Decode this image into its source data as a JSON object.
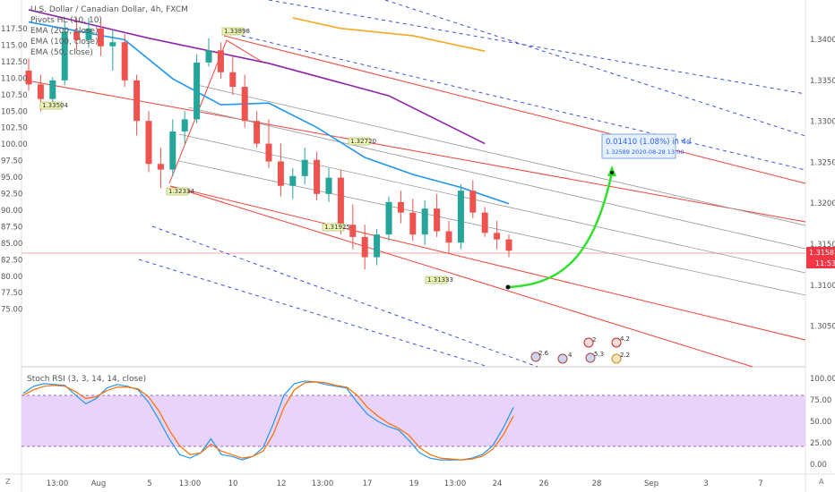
{
  "header": {
    "title": "U.S. Dollar / Canadian Dollar, 4h, FXCM",
    "indicators": [
      "Pivots HL (10, 10)",
      "EMA (200, close)",
      "EMA (100, close)",
      "EMA (50, close)"
    ]
  },
  "stoch_title": "Stoch RSI (3, 3, 14, 14, close)",
  "projection": {
    "line1": "0.01410 (1.08%) in 4d",
    "line2": "1.32589     2020-08-28  13:00"
  },
  "price_tag": {
    "price": "1.31581",
    "time": "11:53",
    "color": "#f23645"
  },
  "pivot_labels": [
    "1.33504",
    "1.33898",
    "1.32334",
    "1.32720",
    "1.31925",
    "1.31333"
  ],
  "event_badges": [
    "2.6",
    "4",
    "2",
    "5.3",
    "4.2",
    "2.2"
  ],
  "colors": {
    "up": "#26a69a",
    "down": "#ef5350",
    "ema50": "#2196f3",
    "ema100": "#8e24aa",
    "ema200": "#f6a821",
    "channel": "#f44336",
    "arrow": "#2fe02f"
  },
  "chart_data": [
    {
      "type": "candlestick",
      "title": "U.S. Dollar / Canadian Dollar, 4h, FXCM",
      "left_axis_ticks": [
        "117.50",
        "115.00",
        "112.50",
        "110.00",
        "107.50",
        "105.00",
        "102.50",
        "100.00",
        "97.50",
        "95.00",
        "92.50",
        "90.00",
        "87.50",
        "85.00",
        "82.50",
        "80.00",
        "77.50",
        "75.00"
      ],
      "right_axis_ticks": [
        "1.34000",
        "1.33500",
        "1.33000",
        "1.32500",
        "1.32000",
        "1.31500",
        "1.31000",
        "1.30500"
      ],
      "x_tick_labels": [
        "13:00",
        "Aug",
        "5",
        "13:00",
        "10",
        "12",
        "13:00",
        "17",
        "19",
        "13:00",
        "24",
        "26",
        "28",
        "Sep",
        "3",
        "7"
      ],
      "ylim": [
        1.3015,
        1.3445
      ],
      "last_price": 1.31581,
      "series": [
        {
          "name": "EMA (200, close)",
          "values": [
            [
              22,
              1.3445
            ],
            [
              26,
              1.3432
            ],
            [
              32,
              1.3423
            ],
            [
              38,
              1.3404
            ]
          ]
        },
        {
          "name": "EMA (100, close)",
          "values": [
            [
              0,
              1.3455
            ],
            [
              10,
              1.342
            ],
            [
              20,
              1.3389
            ],
            [
              30,
              1.3349
            ],
            [
              38,
              1.329
            ]
          ]
        },
        {
          "name": "EMA (50, close)",
          "values": [
            [
              0,
              1.344
            ],
            [
              8,
              1.3418
            ],
            [
              12,
              1.337
            ],
            [
              16,
              1.3338
            ],
            [
              20,
              1.334
            ],
            [
              24,
              1.331
            ],
            [
              28,
              1.3273
            ],
            [
              32,
              1.3252
            ],
            [
              36,
              1.3236
            ],
            [
              40,
              1.3216
            ]
          ]
        },
        {
          "name": "USD/CAD",
          "values": [
            [
              0,
              1.338,
              1.3395,
              1.3355,
              1.3363
            ],
            [
              1,
              1.3363,
              1.3375,
              1.333,
              1.3345
            ],
            [
              2,
              1.3345,
              1.3372,
              1.3338,
              1.3368
            ],
            [
              3,
              1.3368,
              1.344,
              1.3362,
              1.3428
            ],
            [
              4,
              1.3428,
              1.3445,
              1.3405,
              1.3418
            ],
            [
              5,
              1.3418,
              1.3445,
              1.3408,
              1.3432
            ],
            [
              6,
              1.3432,
              1.344,
              1.3398,
              1.341
            ],
            [
              7,
              1.341,
              1.343,
              1.338,
              1.3415
            ],
            [
              8,
              1.3415,
              1.3425,
              1.336,
              1.3368
            ],
            [
              9,
              1.3368,
              1.3375,
              1.33,
              1.3318
            ],
            [
              10,
              1.3318,
              1.333,
              1.3255,
              1.3265
            ],
            [
              11,
              1.3265,
              1.3285,
              1.3235,
              1.3258
            ],
            [
              12,
              1.3258,
              1.332,
              1.325,
              1.3305
            ],
            [
              13,
              1.3305,
              1.333,
              1.329,
              1.332
            ],
            [
              14,
              1.332,
              1.34,
              1.3315,
              1.339
            ],
            [
              15,
              1.339,
              1.342,
              1.3385,
              1.3405
            ],
            [
              16,
              1.3405,
              1.3415,
              1.337,
              1.3378
            ],
            [
              17,
              1.3378,
              1.3398,
              1.335,
              1.336
            ],
            [
              18,
              1.336,
              1.3375,
              1.331,
              1.3318
            ],
            [
              19,
              1.3318,
              1.333,
              1.3285,
              1.329
            ],
            [
              20,
              1.329,
              1.332,
              1.326,
              1.3268
            ],
            [
              21,
              1.3268,
              1.329,
              1.3225,
              1.3238
            ],
            [
              22,
              1.3238,
              1.326,
              1.3222,
              1.325
            ],
            [
              23,
              1.325,
              1.3285,
              1.324,
              1.327
            ],
            [
              24,
              1.327,
              1.328,
              1.322,
              1.3228
            ],
            [
              25,
              1.3228,
              1.326,
              1.3218,
              1.3248
            ],
            [
              26,
              1.3248,
              1.3258,
              1.3178,
              1.319
            ],
            [
              27,
              1.319,
              1.3215,
              1.316,
              1.3175
            ],
            [
              28,
              1.3175,
              1.319,
              1.3135,
              1.315
            ],
            [
              29,
              1.315,
              1.3185,
              1.314,
              1.3178
            ],
            [
              30,
              1.3178,
              1.3225,
              1.317,
              1.3218
            ],
            [
              31,
              1.3218,
              1.3232,
              1.3192,
              1.3205
            ],
            [
              32,
              1.3205,
              1.3222,
              1.317,
              1.3178
            ],
            [
              33,
              1.3178,
              1.322,
              1.3165,
              1.321
            ],
            [
              34,
              1.321,
              1.3228,
              1.3175,
              1.3182
            ],
            [
              35,
              1.3182,
              1.3195,
              1.3155,
              1.3168
            ],
            [
              36,
              1.3168,
              1.324,
              1.316,
              1.3232
            ],
            [
              37,
              1.3232,
              1.3245,
              1.3198,
              1.3205
            ],
            [
              38,
              1.3205,
              1.3212,
              1.3175,
              1.318
            ],
            [
              39,
              1.318,
              1.3195,
              1.316,
              1.3172
            ],
            [
              40,
              1.3172,
              1.3178,
              1.315,
              1.3158
            ]
          ]
        }
      ]
    },
    {
      "type": "line",
      "title": "Stoch RSI (3, 3, 14, 14, close)",
      "ylim": [
        0,
        100
      ],
      "y_tick_labels": [
        "100.00",
        "75.00",
        "50.00",
        "25.00",
        "0.00"
      ],
      "bands": [
        20,
        80
      ],
      "x": [
        0,
        3,
        6,
        9,
        12,
        15,
        18,
        21,
        24,
        27,
        30,
        33,
        36,
        39,
        42,
        45,
        48,
        51,
        54,
        57,
        60,
        63,
        66,
        69,
        72,
        75,
        78,
        81,
        84,
        87,
        90,
        93,
        96,
        99,
        102,
        105,
        108,
        111,
        114,
        117,
        120,
        123,
        126,
        129,
        132,
        135,
        138,
        141
      ],
      "series": [
        {
          "name": "K",
          "values": [
            82,
            90,
            93,
            92,
            91,
            80,
            70,
            76,
            88,
            92,
            90,
            86,
            72,
            52,
            30,
            12,
            8,
            14,
            30,
            12,
            10,
            6,
            10,
            20,
            48,
            80,
            93,
            96,
            95,
            92,
            90,
            88,
            72,
            58,
            50,
            44,
            40,
            28,
            14,
            8,
            6,
            6,
            6,
            8,
            12,
            22,
            42,
            66
          ]
        },
        {
          "name": "D",
          "values": [
            80,
            86,
            90,
            91,
            90,
            84,
            76,
            78,
            85,
            89,
            89,
            87,
            78,
            62,
            40,
            22,
            12,
            14,
            24,
            16,
            12,
            8,
            10,
            16,
            36,
            66,
            86,
            94,
            95,
            94,
            91,
            89,
            80,
            66,
            56,
            48,
            42,
            34,
            20,
            12,
            8,
            7,
            6,
            7,
            10,
            18,
            34,
            56
          ]
        }
      ]
    }
  ]
}
